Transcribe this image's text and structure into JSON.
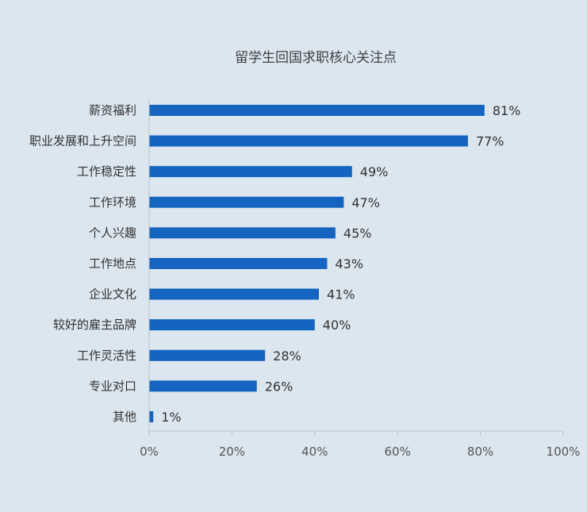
{
  "chart_data": {
    "type": "bar",
    "orientation": "horizontal",
    "title": "留学生回国求职核心关注点",
    "categories": [
      "薪资福利",
      "职业发展和上升空间",
      "工作稳定性",
      "工作环境",
      "个人兴趣",
      "工作地点",
      "企业文化",
      "较好的雇主品牌",
      "工作灵活性",
      "专业对口",
      "其他"
    ],
    "values": [
      81,
      77,
      49,
      47,
      45,
      43,
      41,
      40,
      28,
      26,
      1
    ],
    "value_labels": [
      "81%",
      "77%",
      "49%",
      "47%",
      "45%",
      "43%",
      "41%",
      "40%",
      "28%",
      "26%",
      "1%"
    ],
    "xlim": [
      0,
      100
    ],
    "x_ticks": [
      0,
      20,
      40,
      60,
      80,
      100
    ],
    "x_tick_labels": [
      "0%",
      "20%",
      "40%",
      "60%",
      "80%",
      "100%"
    ],
    "bar_color": "#1565c0",
    "background_color": "#dce6ef",
    "grid": false,
    "legend": "none"
  }
}
